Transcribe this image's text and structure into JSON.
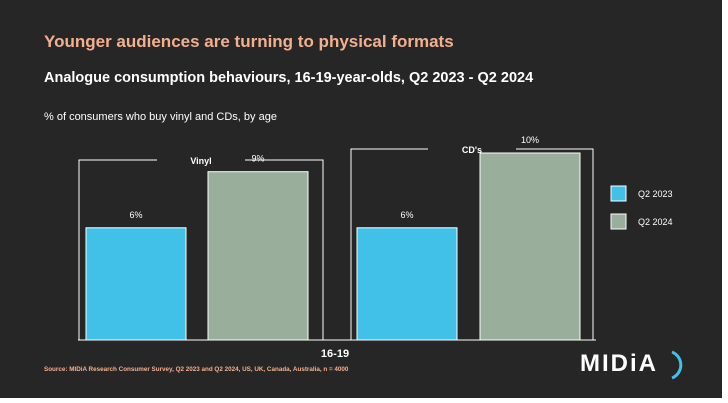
{
  "slide": {
    "headline": "Younger audiences are turning to physical formats",
    "subtitle": "Analogue consumption behaviours, 16-19-year-olds, Q2 2023 - Q2 2024",
    "caption": "% of consumers who buy vinyl and CDs, by age",
    "source": "Source: MIDiA Research Consumer Survey, Q2 2023 and Q2 2024, US, UK, Canada, Australia, n = 4000",
    "logo_text": "MIDiA"
  },
  "colors": {
    "background": "#262626",
    "accent": "#f3b08f",
    "q2_2023": "#41c0e8",
    "q2_2024": "#9aae9c"
  },
  "chart_data": {
    "type": "bar",
    "group_label": "16-19",
    "categories": [
      "Vinyl",
      "CD's"
    ],
    "series": [
      {
        "name": "Q2 2023",
        "values": [
          6,
          6
        ]
      },
      {
        "name": "Q2 2024",
        "values": [
          9,
          10
        ]
      }
    ],
    "value_suffix": "%",
    "ylim": [
      0,
      12
    ],
    "grid": false,
    "legend": "right"
  }
}
